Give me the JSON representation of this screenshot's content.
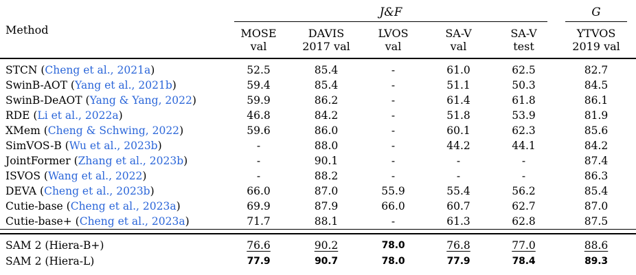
{
  "colors": {
    "citation": "#2b66d9",
    "text": "#000000",
    "rule": "#000000"
  },
  "citation_punct": {
    "open": "(",
    "close": ")"
  },
  "header": {
    "method_label": "Method",
    "groups": [
      {
        "label": "J&F",
        "span": 5
      },
      {
        "label": "G",
        "span": 1
      }
    ],
    "columns": [
      {
        "name": "MOSE",
        "sub": "val"
      },
      {
        "name": "DAVIS",
        "sub": "2017 val"
      },
      {
        "name": "LVOS",
        "sub": "val"
      },
      {
        "name": "SA-V",
        "sub": "val"
      },
      {
        "name": "SA-V",
        "sub": "test"
      },
      {
        "name": "YTVOS",
        "sub": "2019 val"
      }
    ]
  },
  "rows": [
    {
      "method": "STCN",
      "cite": "Cheng et al., 2021a",
      "values": [
        "52.5",
        "85.4",
        "-",
        "61.0",
        "62.5",
        "82.7"
      ]
    },
    {
      "method": "SwinB-AOT",
      "cite": "Yang et al., 2021b",
      "values": [
        "59.4",
        "85.4",
        "-",
        "51.1",
        "50.3",
        "84.5"
      ]
    },
    {
      "method": "SwinB-DeAOT",
      "cite": "Yang & Yang, 2022",
      "values": [
        "59.9",
        "86.2",
        "-",
        "61.4",
        "61.8",
        "86.1"
      ]
    },
    {
      "method": "RDE",
      "cite": "Li et al., 2022a",
      "values": [
        "46.8",
        "84.2",
        "-",
        "51.8",
        "53.9",
        "81.9"
      ]
    },
    {
      "method": "XMem",
      "cite": "Cheng & Schwing, 2022",
      "values": [
        "59.6",
        "86.0",
        "-",
        "60.1",
        "62.3",
        "85.6"
      ]
    },
    {
      "method": "SimVOS-B",
      "cite": "Wu et al., 2023b",
      "values": [
        "-",
        "88.0",
        "-",
        "44.2",
        "44.1",
        "84.2"
      ]
    },
    {
      "method": "JointFormer",
      "cite": "Zhang et al., 2023b",
      "values": [
        "-",
        "90.1",
        "-",
        "-",
        "-",
        "87.4"
      ]
    },
    {
      "method": "ISVOS",
      "cite": "Wang et al., 2022",
      "values": [
        "-",
        "88.2",
        "-",
        "-",
        "-",
        "86.3"
      ]
    },
    {
      "method": "DEVA",
      "cite": "Cheng et al., 2023b",
      "values": [
        "66.0",
        "87.0",
        "55.9",
        "55.4",
        "56.2",
        "85.4"
      ]
    },
    {
      "method": "Cutie-base",
      "cite": "Cheng et al., 2023a",
      "values": [
        "69.9",
        "87.9",
        "66.0",
        "60.7",
        "62.7",
        "87.0"
      ]
    },
    {
      "method": "Cutie-base+",
      "cite": "Cheng et al., 2023a",
      "values": [
        "71.7",
        "88.1",
        "-",
        "61.3",
        "62.8",
        "87.5"
      ]
    }
  ],
  "sam_rows": [
    {
      "method": "SAM 2 (Hiera-B+)",
      "values": [
        {
          "v": "76.6",
          "style": "underline"
        },
        {
          "v": "90.2",
          "style": "underline"
        },
        {
          "v": "78.0",
          "style": "bold"
        },
        {
          "v": "76.8",
          "style": "underline"
        },
        {
          "v": "77.0",
          "style": "underline"
        },
        {
          "v": "88.6",
          "style": "underline"
        }
      ]
    },
    {
      "method": "SAM 2 (Hiera-L)",
      "values": [
        {
          "v": "77.9",
          "style": "bold"
        },
        {
          "v": "90.7",
          "style": "bold"
        },
        {
          "v": "78.0",
          "style": "bold"
        },
        {
          "v": "77.9",
          "style": "bold"
        },
        {
          "v": "78.4",
          "style": "bold"
        },
        {
          "v": "89.3",
          "style": "bold"
        }
      ]
    }
  ]
}
